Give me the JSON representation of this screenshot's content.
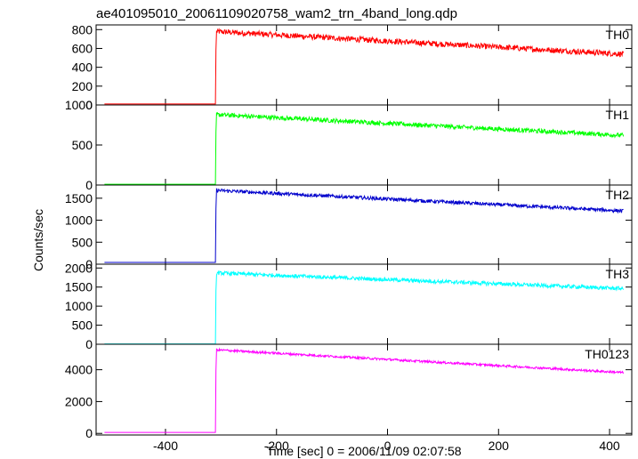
{
  "chart_data": {
    "type": "line",
    "title": "ae401095010_20061109020758_wam2_trn_4band_long.qdp",
    "xlabel": "Time [sec] 0 = 2006/11/09 02:07:58",
    "ylabel": "Counts/sec",
    "xlim": [
      -525,
      440
    ],
    "x_ticks": [
      "-400",
      "-200",
      "0",
      "200",
      "400"
    ],
    "x_tick_values": [
      -400,
      -200,
      0,
      200,
      400
    ],
    "grid": false,
    "series": [
      {
        "name": "TH0",
        "color": "#ff0000",
        "ylim": [
          0,
          850
        ],
        "y_ticks": [
          "800",
          "600",
          "400",
          "200",
          "0"
        ],
        "y_tick_values": [
          800,
          600,
          400,
          200,
          0
        ],
        "t_start": -510,
        "t_onset": -310,
        "t_end": 425,
        "pre_level": 10,
        "peak_level": 780,
        "end_level": 540,
        "noise": 30
      },
      {
        "name": "TH1",
        "color": "#00ff00",
        "ylim": [
          0,
          1000
        ],
        "y_ticks": [
          "1000",
          "500",
          "0"
        ],
        "y_tick_values": [
          1000,
          500,
          0
        ],
        "t_start": -510,
        "t_onset": -310,
        "t_end": 425,
        "pre_level": 10,
        "peak_level": 880,
        "end_level": 620,
        "noise": 28
      },
      {
        "name": "TH2",
        "color": "#0000cc",
        "ylim": [
          0,
          1800
        ],
        "y_ticks": [
          "1500",
          "1000",
          "500",
          "0"
        ],
        "y_tick_values": [
          1500,
          1000,
          500,
          0
        ],
        "t_start": -510,
        "t_onset": -310,
        "t_end": 425,
        "pre_level": 40,
        "peak_level": 1680,
        "end_level": 1210,
        "noise": 40
      },
      {
        "name": "TH3",
        "color": "#00ffff",
        "ylim": [
          0,
          2100
        ],
        "y_ticks": [
          "2000",
          "1500",
          "1000",
          "500",
          "0"
        ],
        "y_tick_values": [
          2000,
          1500,
          1000,
          500,
          0
        ],
        "t_start": -510,
        "t_onset": -310,
        "t_end": 425,
        "pre_level": 10,
        "peak_level": 1870,
        "end_level": 1460,
        "noise": 50
      },
      {
        "name": "TH0123",
        "color": "#ff00ff",
        "ylim": [
          -100,
          5600
        ],
        "y_ticks": [
          "4000",
          "2000",
          "0"
        ],
        "y_tick_values": [
          4000,
          2000,
          0
        ],
        "t_start": -510,
        "t_onset": -310,
        "t_end": 425,
        "pre_level": 60,
        "peak_level": 5250,
        "end_level": 3820,
        "noise": 70
      }
    ]
  }
}
